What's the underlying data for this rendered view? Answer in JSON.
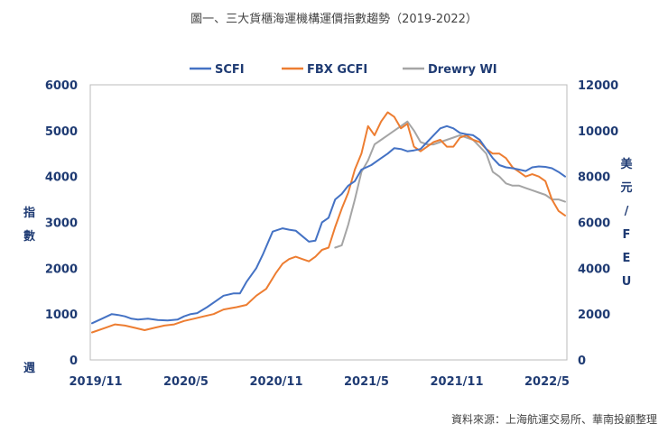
{
  "title": "圖一、三大貨櫃海運機構運價指數趨勢（2019-2022）",
  "source": "資料來源：上海航運交易所、華南投顧整理",
  "chart_data": {
    "type": "line",
    "x_ticks": [
      "2019/11",
      "2020/5",
      "2020/11",
      "2021/5",
      "2021/11",
      "2022/5"
    ],
    "x_unit": "週",
    "left_axis": {
      "label": "指數",
      "ylim": [
        0,
        6000
      ],
      "ticks": [
        "0",
        "1000",
        "2000",
        "3000",
        "4000",
        "5000",
        "6000"
      ]
    },
    "right_axis": {
      "label": "美元/FEU",
      "label_chars": [
        "美",
        "元",
        "/",
        "F",
        "E",
        "U"
      ],
      "ylim": [
        0,
        12000
      ],
      "ticks": [
        "0",
        "2000",
        "4000",
        "6000",
        "8000",
        "10000",
        "12000"
      ]
    },
    "series": [
      {
        "name": "SCFI",
        "axis": "left",
        "color": "#4472c4",
        "x": [
          0,
          3,
          6,
          8,
          10,
          12,
          14,
          17,
          20,
          23,
          26,
          28,
          30,
          32,
          35,
          38,
          40,
          43,
          45,
          47,
          50,
          52,
          55,
          58,
          60,
          62,
          64,
          66,
          68,
          70,
          72,
          74,
          76,
          78,
          80,
          82,
          85,
          88,
          90,
          92,
          94,
          96,
          98,
          100,
          102,
          104,
          106,
          108,
          110,
          112,
          114,
          116,
          118,
          120,
          122,
          124,
          126,
          128,
          130,
          132,
          134,
          136,
          138,
          140,
          142,
          144
        ],
        "y": [
          800,
          900,
          1000,
          980,
          950,
          900,
          880,
          900,
          870,
          860,
          880,
          950,
          1000,
          1020,
          1150,
          1300,
          1400,
          1450,
          1450,
          1700,
          2000,
          2300,
          2800,
          2870,
          2840,
          2820,
          2700,
          2580,
          2600,
          3000,
          3100,
          3500,
          3620,
          3800,
          3900,
          4150,
          4250,
          4400,
          4500,
          4620,
          4600,
          4550,
          4570,
          4600,
          4750,
          4900,
          5050,
          5100,
          5050,
          4950,
          4920,
          4900,
          4800,
          4600,
          4400,
          4250,
          4200,
          4180,
          4150,
          4120,
          4200,
          4220,
          4210,
          4180,
          4100,
          4000
        ]
      },
      {
        "name": "FBX GCFI",
        "axis": "right",
        "color": "#ed7d31",
        "x": [
          0,
          4,
          7,
          10,
          13,
          16,
          19,
          22,
          25,
          28,
          31,
          34,
          37,
          40,
          44,
          47,
          50,
          53,
          56,
          58,
          60,
          62,
          64,
          66,
          68,
          70,
          72,
          74,
          76,
          78,
          80,
          82,
          84,
          86,
          88,
          90,
          92,
          94,
          96,
          98,
          100,
          102,
          104,
          106,
          108,
          110,
          112,
          114,
          116,
          118,
          120,
          122,
          124,
          126,
          128,
          130,
          132,
          134,
          136,
          138,
          140,
          142,
          144
        ],
        "y": [
          1200,
          1400,
          1550,
          1500,
          1400,
          1300,
          1400,
          1500,
          1550,
          1700,
          1800,
          1900,
          2000,
          2200,
          2300,
          2400,
          2800,
          3100,
          3800,
          4200,
          4400,
          4500,
          4400,
          4300,
          4500,
          4800,
          4900,
          5800,
          6600,
          7300,
          8300,
          9000,
          10200,
          9800,
          10400,
          10800,
          10600,
          10100,
          10300,
          9300,
          9100,
          9300,
          9500,
          9600,
          9300,
          9300,
          9700,
          9800,
          9600,
          9500,
          9200,
          9000,
          9000,
          8800,
          8400,
          8200,
          8000,
          8100,
          8000,
          7800,
          7000,
          6500,
          6300
        ]
      },
      {
        "name": "Drewry WI",
        "axis": "right",
        "color": "#a5a5a5",
        "x": [
          74,
          76,
          78,
          80,
          82,
          84,
          86,
          88,
          90,
          92,
          94,
          96,
          98,
          100,
          102,
          104,
          106,
          108,
          110,
          112,
          114,
          116,
          118,
          120,
          122,
          124,
          126,
          128,
          130,
          132,
          134,
          136,
          138,
          140,
          142,
          144
        ],
        "y": [
          4900,
          5000,
          5900,
          7000,
          8200,
          8700,
          9400,
          9600,
          9800,
          10000,
          10200,
          10400,
          10000,
          9500,
          9400,
          9400,
          9500,
          9600,
          9700,
          9800,
          9700,
          9600,
          9300,
          9000,
          8200,
          8000,
          7700,
          7600,
          7600,
          7500,
          7400,
          7300,
          7200,
          7000,
          7000,
          6900
        ]
      }
    ]
  }
}
